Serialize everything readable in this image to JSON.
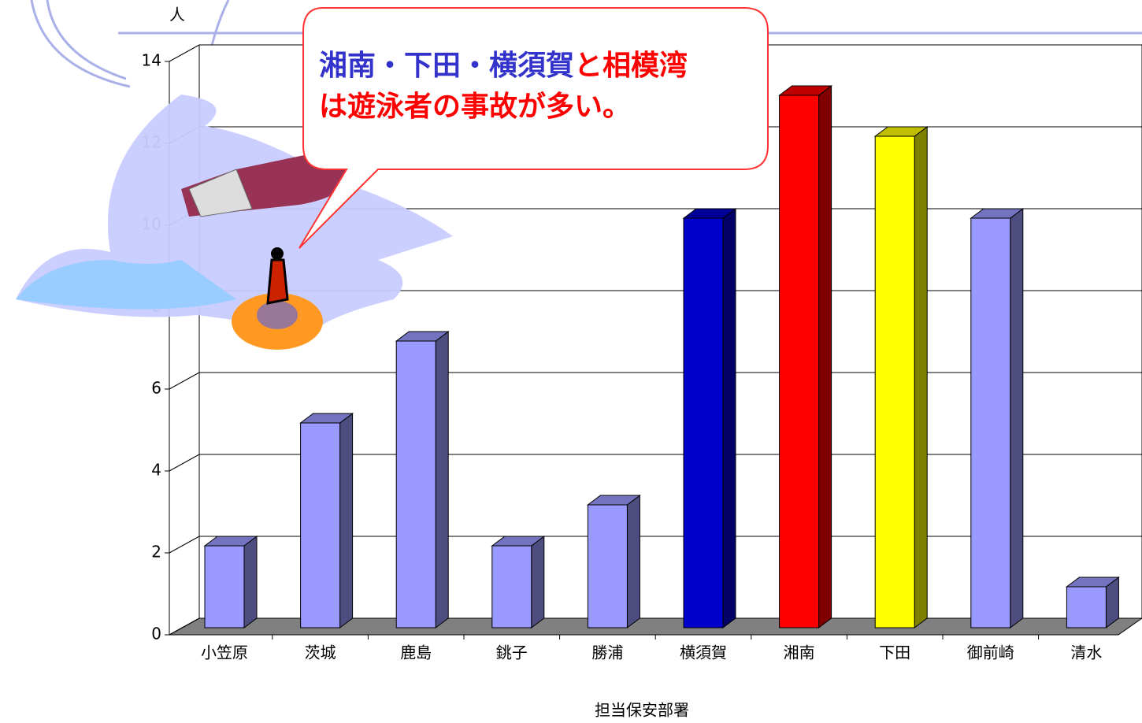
{
  "chart_data": {
    "type": "bar3d",
    "y_label": "人",
    "x_label": "担当保安部署",
    "categories": [
      "小笠原",
      "茨城",
      "鹿島",
      "銚子",
      "勝浦",
      "横須賀",
      "湘南",
      "下田",
      "御前崎",
      "清水"
    ],
    "values": [
      2,
      5,
      7,
      2,
      3,
      10,
      13,
      12,
      10,
      1
    ],
    "colors": [
      "#9999ff",
      "#9999ff",
      "#9999ff",
      "#9999ff",
      "#9999ff",
      "#0000cc",
      "#ff0000",
      "#ffff00",
      "#9999ff",
      "#9999ff"
    ],
    "ylim": [
      0,
      14
    ],
    "yticks": [
      0,
      2,
      4,
      6,
      8,
      10,
      12,
      14
    ],
    "grid": true,
    "annotation": {
      "lines": [
        [
          {
            "text": "湘南・下田・横須賀",
            "color": "#3333cc"
          },
          {
            "text": "と相模湾",
            "color": "#ff0000"
          }
        ],
        [
          {
            "text": "は遊泳者の事故が多い。",
            "color": "#ff0000"
          }
        ]
      ]
    }
  }
}
